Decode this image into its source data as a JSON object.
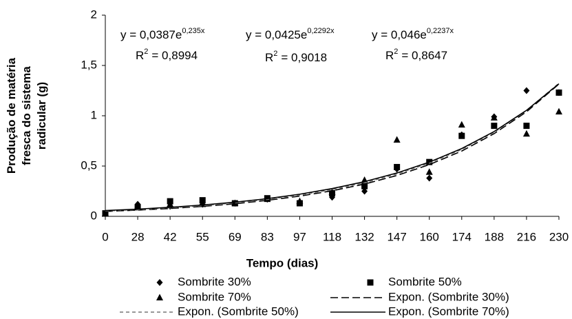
{
  "chart_data": {
    "type": "scatter",
    "y_label_lines": [
      "Produção de matéria",
      "fresca do sistema",
      "radicular (g)"
    ],
    "x_label": "Tempo (dias)",
    "categories": [
      "0",
      "28",
      "42",
      "55",
      "69",
      "83",
      "97",
      "118",
      "132",
      "147",
      "160",
      "174",
      "188",
      "216",
      "230"
    ],
    "ylim": [
      0,
      2
    ],
    "yticks": [
      0,
      {
        "value": 0.5,
        "label": "0,5"
      },
      1,
      {
        "value": 1.5,
        "label": "1,5"
      },
      2
    ],
    "series": [
      {
        "name": "Sombrite 30%",
        "color": "#000000",
        "marker": "diamond",
        "values": [
          0.03,
          0.12,
          0.1,
          0.12,
          0.13,
          0.17,
          0.14,
          0.19,
          0.25,
          0.47,
          0.38,
          0.81,
          0.99,
          1.25,
          1.23
        ]
      },
      {
        "name": "Sombrite 50%",
        "color": "#000000",
        "marker": "square",
        "values": [
          0.03,
          0.09,
          0.15,
          0.16,
          0.13,
          0.18,
          0.13,
          0.23,
          0.3,
          0.49,
          0.54,
          0.8,
          0.9,
          0.9,
          1.23
        ]
      },
      {
        "name": "Sombrite 70%",
        "color": "#000000",
        "marker": "triangle",
        "values": [
          0.03,
          0.1,
          0.12,
          0.12,
          0.13,
          0.17,
          0.15,
          0.24,
          0.36,
          0.76,
          0.44,
          0.91,
          0.98,
          0.82,
          1.04
        ]
      },
      {
        "name": "Expon. (Sombrite 30%)",
        "color": "#000000",
        "dash": "long",
        "values": [
          0.049,
          0.062,
          0.078,
          0.099,
          0.125,
          0.159,
          0.201,
          0.254,
          0.321,
          0.406,
          0.514,
          0.649,
          0.822,
          1.039,
          1.315
        ]
      },
      {
        "name": "Expon. (Sombrite 50%)",
        "color": "#777777",
        "dash": "short",
        "values": [
          0.053,
          0.067,
          0.085,
          0.106,
          0.134,
          0.168,
          0.211,
          0.266,
          0.334,
          0.421,
          0.529,
          0.665,
          0.836,
          1.052,
          1.323
        ]
      },
      {
        "name": "Expon. (Sombrite 70%)",
        "color": "#000000",
        "dash": "solid",
        "values": [
          0.058,
          0.072,
          0.09,
          0.113,
          0.141,
          0.176,
          0.22,
          0.276,
          0.345,
          0.431,
          0.539,
          0.674,
          0.843,
          1.054,
          1.318
        ]
      }
    ],
    "annotations": [
      {
        "equation": "y = 0,0387e",
        "exponent": "0,235x",
        "r_label": "R",
        "r_exponent": "2",
        "r_value": "= 0,8994"
      },
      {
        "equation": "y = 0,0425e",
        "exponent": "0,2292x",
        "r_label": "R",
        "r_exponent": "2",
        "r_value": "= 0,9018"
      },
      {
        "equation": "y = 0,046e",
        "exponent": "0,2237x",
        "r_label": "R",
        "r_exponent": "2",
        "r_value": "= 0,8647"
      }
    ]
  }
}
